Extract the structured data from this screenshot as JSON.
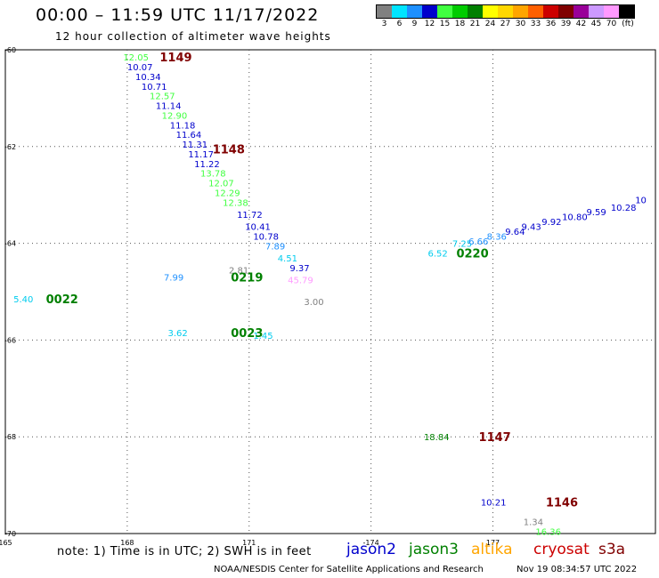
{
  "header": {
    "title": "00:00 – 11:59 UTC 11/17/2022",
    "subtitle": "12 hour collection of altimeter wave heights"
  },
  "color_scale": {
    "unit_label": "(ft)",
    "stops": [
      {
        "label": "3",
        "color": "#808080"
      },
      {
        "label": "6",
        "color": "#00e5ff"
      },
      {
        "label": "9",
        "color": "#1e90ff"
      },
      {
        "label": "12",
        "color": "#0000cc"
      },
      {
        "label": "15",
        "color": "#40ff40"
      },
      {
        "label": "18",
        "color": "#00cc00"
      },
      {
        "label": "21",
        "color": "#008000"
      },
      {
        "label": "24",
        "color": "#ffff00"
      },
      {
        "label": "27",
        "color": "#ffd700"
      },
      {
        "label": "30",
        "color": "#ffa500"
      },
      {
        "label": "33",
        "color": "#ff6000"
      },
      {
        "label": "36",
        "color": "#cc0000"
      },
      {
        "label": "39",
        "color": "#800000"
      },
      {
        "label": "42",
        "color": "#990099"
      },
      {
        "label": "45",
        "color": "#cc99ff"
      },
      {
        "label": "70",
        "color": "#ff99ff"
      },
      {
        "label": "",
        "color": "#000000"
      }
    ]
  },
  "chart_data": {
    "type": "scatter",
    "title": "00:00 – 11:59 UTC 11/17/2022",
    "subtitle": "12 hour collection of altimeter wave heights",
    "xlim": [
      165,
      181
    ],
    "ylim": [
      -70,
      -60
    ],
    "x_ticks": [
      {
        "value": 165,
        "label": "165"
      },
      {
        "value": 168,
        "label": "168"
      },
      {
        "value": 171,
        "label": "171"
      },
      {
        "value": 174,
        "label": "-174"
      },
      {
        "value": 177,
        "label": "177"
      }
    ],
    "y_ticks": [
      {
        "value": -60,
        "label": "-60"
      },
      {
        "value": -62,
        "label": "-62"
      },
      {
        "value": -64,
        "label": "-64"
      },
      {
        "value": -66,
        "label": "-66"
      },
      {
        "value": -68,
        "label": "-68"
      },
      {
        "value": -70,
        "label": "-70"
      }
    ],
    "grid": true,
    "points": [
      {
        "lon": 167.9,
        "lat": -60.15,
        "label": "12.05",
        "color": "#40ff40"
      },
      {
        "lon": 168.0,
        "lat": -60.35,
        "label": "10.07",
        "color": "#0000cc"
      },
      {
        "lon": 168.2,
        "lat": -60.55,
        "label": "10.34",
        "color": "#0000cc"
      },
      {
        "lon": 168.35,
        "lat": -60.75,
        "label": "10.71",
        "color": "#0000cc"
      },
      {
        "lon": 168.55,
        "lat": -60.95,
        "label": "12.57",
        "color": "#40ff40"
      },
      {
        "lon": 168.7,
        "lat": -61.15,
        "label": "11.14",
        "color": "#0000cc"
      },
      {
        "lon": 168.85,
        "lat": -61.35,
        "label": "12.90",
        "color": "#40ff40"
      },
      {
        "lon": 169.05,
        "lat": -61.55,
        "label": "11.18",
        "color": "#0000cc"
      },
      {
        "lon": 169.2,
        "lat": -61.75,
        "label": "11.64",
        "color": "#0000cc"
      },
      {
        "lon": 169.35,
        "lat": -61.95,
        "label": "11.31",
        "color": "#0000cc"
      },
      {
        "lon": 169.5,
        "lat": -62.15,
        "label": "11.17",
        "color": "#0000cc"
      },
      {
        "lon": 169.65,
        "lat": -62.35,
        "label": "11.22",
        "color": "#0000cc"
      },
      {
        "lon": 169.8,
        "lat": -62.55,
        "label": "13.78",
        "color": "#40ff40"
      },
      {
        "lon": 170.0,
        "lat": -62.75,
        "label": "12.07",
        "color": "#40ff40"
      },
      {
        "lon": 170.15,
        "lat": -62.95,
        "label": "12.29",
        "color": "#40ff40"
      },
      {
        "lon": 170.35,
        "lat": -63.15,
        "label": "12.38",
        "color": "#40ff40"
      },
      {
        "lon": 170.7,
        "lat": -63.4,
        "label": "11.72",
        "color": "#0000cc"
      },
      {
        "lon": 170.9,
        "lat": -63.65,
        "label": "10.41",
        "color": "#0000cc"
      },
      {
        "lon": 171.1,
        "lat": -63.85,
        "label": "10.78",
        "color": "#0000cc"
      },
      {
        "lon": 171.4,
        "lat": -64.05,
        "label": "7.89",
        "color": "#1e90ff"
      },
      {
        "lon": 171.7,
        "lat": -64.3,
        "label": "4.51",
        "color": "#00ccee"
      },
      {
        "lon": 172.0,
        "lat": -64.5,
        "label": "9.37",
        "color": "#0000cc"
      },
      {
        "lon": 171.95,
        "lat": -64.75,
        "label": "45.79",
        "color": "#ff99ff"
      },
      {
        "lon": 172.35,
        "lat": -65.2,
        "label": "3.00",
        "color": "#808080"
      },
      {
        "lon": 170.5,
        "lat": -64.55,
        "label": "2.81",
        "color": "#808080"
      },
      {
        "lon": 168.9,
        "lat": -64.7,
        "label": "7.99",
        "color": "#1e90ff"
      },
      {
        "lon": 165.2,
        "lat": -65.15,
        "label": "5.40",
        "color": "#00ccee"
      },
      {
        "lon": 169.0,
        "lat": -65.85,
        "label": "3.62",
        "color": "#00ccee"
      },
      {
        "lon": 171.1,
        "lat": -65.9,
        "label": "1.45",
        "color": "#00ccee"
      },
      {
        "lon": 175.4,
        "lat": -64.2,
        "label": "6.52",
        "color": "#00ccee"
      },
      {
        "lon": 176.0,
        "lat": -64.0,
        "label": "7.25",
        "color": "#00ccee"
      },
      {
        "lon": 176.4,
        "lat": -63.95,
        "label": "6.66",
        "color": "#1e90ff"
      },
      {
        "lon": 176.85,
        "lat": -63.85,
        "label": "8.36",
        "color": "#1e90ff"
      },
      {
        "lon": 177.3,
        "lat": -63.75,
        "label": "9.64",
        "color": "#0000cc"
      },
      {
        "lon": 177.7,
        "lat": -63.65,
        "label": "9.43",
        "color": "#0000cc"
      },
      {
        "lon": 178.2,
        "lat": -63.55,
        "label": "9.92",
        "color": "#0000cc"
      },
      {
        "lon": 178.7,
        "lat": -63.45,
        "label": "10.80",
        "color": "#0000cc"
      },
      {
        "lon": 179.3,
        "lat": -63.35,
        "label": "9.59",
        "color": "#0000cc"
      },
      {
        "lon": 179.9,
        "lat": -63.25,
        "label": "10.28",
        "color": "#0000cc"
      },
      {
        "lon": 180.5,
        "lat": -63.1,
        "label": "10",
        "color": "#0000cc"
      },
      {
        "lon": 175.3,
        "lat": -68.0,
        "label": "18.84",
        "color": "#008000"
      },
      {
        "lon": 176.7,
        "lat": -69.35,
        "label": "10.21",
        "color": "#0000cc"
      },
      {
        "lon": 177.75,
        "lat": -69.75,
        "label": "1.34",
        "color": "#808080"
      },
      {
        "lon": 178.05,
        "lat": -69.95,
        "label": "16.36",
        "color": "#40ff40"
      }
    ],
    "time_markers": [
      {
        "lon": 168.8,
        "lat": -60.15,
        "label": "1149",
        "color": "#800000"
      },
      {
        "lon": 170.1,
        "lat": -62.05,
        "label": "1148",
        "color": "#800000"
      },
      {
        "lon": 166.0,
        "lat": -65.15,
        "label": "0022",
        "color": "#008000"
      },
      {
        "lon": 170.55,
        "lat": -64.7,
        "label": "0219",
        "color": "#008000"
      },
      {
        "lon": 170.55,
        "lat": -65.85,
        "label": "0023",
        "color": "#008000"
      },
      {
        "lon": 176.1,
        "lat": -64.2,
        "label": "0220",
        "color": "#008000"
      },
      {
        "lon": 176.65,
        "lat": -68.0,
        "label": "1147",
        "color": "#800000"
      },
      {
        "lon": 178.3,
        "lat": -69.35,
        "label": "1146",
        "color": "#800000"
      }
    ]
  },
  "footer": {
    "note": "note: 1) Time is in UTC; 2) SWH is in feet",
    "satellites": [
      {
        "name": "jason2",
        "color": "#0000cc"
      },
      {
        "name": "jason3",
        "color": "#008000"
      },
      {
        "name": "altika",
        "color": "#ffa500"
      },
      {
        "name": "cryosat",
        "color": "#cc0000"
      },
      {
        "name": "s3a",
        "color": "#800000"
      }
    ],
    "credit": "NOAA/NESDIS Center for Satellite Applications and Research",
    "timestamp": "Nov 19 08:34:57 UTC 2022"
  }
}
